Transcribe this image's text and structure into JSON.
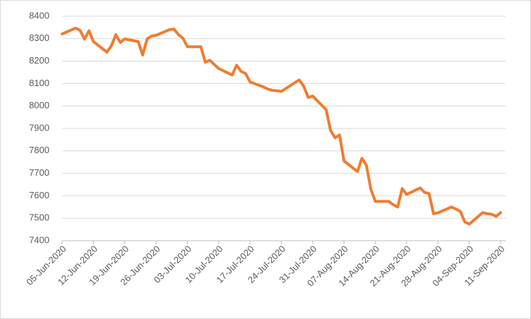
{
  "chart_data": {
    "type": "line",
    "color": "#ed7d31",
    "grid": true,
    "x": [
      "2020-06-05",
      "2020-06-08",
      "2020-06-09",
      "2020-06-10",
      "2020-06-11",
      "2020-06-12",
      "2020-06-15",
      "2020-06-16",
      "2020-06-17",
      "2020-06-18",
      "2020-06-19",
      "2020-06-22",
      "2020-06-23",
      "2020-06-24",
      "2020-06-25",
      "2020-06-26",
      "2020-06-29",
      "2020-06-30",
      "2020-07-01",
      "2020-07-02",
      "2020-07-03",
      "2020-07-06",
      "2020-07-07",
      "2020-07-08",
      "2020-07-09",
      "2020-07-10",
      "2020-07-13",
      "2020-07-14",
      "2020-07-15",
      "2020-07-16",
      "2020-07-17",
      "2020-07-20",
      "2020-07-21",
      "2020-07-22",
      "2020-07-23",
      "2020-07-24",
      "2020-07-27",
      "2020-07-28",
      "2020-07-29",
      "2020-07-30",
      "2020-07-31",
      "2020-08-03",
      "2020-08-04",
      "2020-08-05",
      "2020-08-06",
      "2020-08-07",
      "2020-08-10",
      "2020-08-11",
      "2020-08-12",
      "2020-08-13",
      "2020-08-14",
      "2020-08-17",
      "2020-08-18",
      "2020-08-19",
      "2020-08-20",
      "2020-08-21",
      "2020-08-24",
      "2020-08-25",
      "2020-08-26",
      "2020-08-27",
      "2020-08-28",
      "2020-08-31",
      "2020-09-01",
      "2020-09-02",
      "2020-09-03",
      "2020-09-04",
      "2020-09-07",
      "2020-09-08",
      "2020-09-09",
      "2020-09-10",
      "2020-09-11"
    ],
    "values": [
      8321,
      8347,
      8337,
      8298,
      8335,
      8287,
      8240,
      8268,
      8318,
      8283,
      8299,
      8287,
      8227,
      8299,
      8312,
      8315,
      8340,
      8343,
      8318,
      8302,
      8264,
      8264,
      8195,
      8204,
      8185,
      8167,
      8138,
      8182,
      8154,
      8145,
      8107,
      8085,
      8075,
      8070,
      8068,
      8065,
      8104,
      8116,
      8088,
      8038,
      8044,
      7984,
      7890,
      7858,
      7871,
      7755,
      7708,
      7767,
      7736,
      7629,
      7575,
      7575,
      7560,
      7550,
      7632,
      7606,
      7635,
      7615,
      7610,
      7520,
      7524,
      7550,
      7541,
      7530,
      7483,
      7474,
      7525,
      7520,
      7518,
      7508,
      7525
    ],
    "xlim": [
      "2020-06-05",
      "2020-09-11"
    ],
    "xticks": [
      {
        "value": "2020-06-05",
        "label": "05-Jun-2020"
      },
      {
        "value": "2020-06-12",
        "label": "12-Jun-2020"
      },
      {
        "value": "2020-06-19",
        "label": "19-Jun-2020"
      },
      {
        "value": "2020-06-26",
        "label": "26-Jun-2020"
      },
      {
        "value": "2020-07-03",
        "label": "03-Jul-2020"
      },
      {
        "value": "2020-07-10",
        "label": "10-Jul-2020"
      },
      {
        "value": "2020-07-17",
        "label": "17-Jul-2020"
      },
      {
        "value": "2020-07-24",
        "label": "24-Jul-2020"
      },
      {
        "value": "2020-07-31",
        "label": "31-Jul-2020"
      },
      {
        "value": "2020-08-07",
        "label": "07-Aug-2020"
      },
      {
        "value": "2020-08-14",
        "label": "14-Aug-2020"
      },
      {
        "value": "2020-08-21",
        "label": "21-Aug-2020"
      },
      {
        "value": "2020-08-28",
        "label": "28-Aug-2020"
      },
      {
        "value": "2020-09-04",
        "label": "04-Sep-2020"
      },
      {
        "value": "2020-09-11",
        "label": "11-Sep-2020"
      }
    ],
    "ylim": [
      7400,
      8400
    ],
    "yticks": [
      7400,
      7500,
      7600,
      7700,
      7800,
      7900,
      8000,
      8100,
      8200,
      8300,
      8400
    ]
  }
}
